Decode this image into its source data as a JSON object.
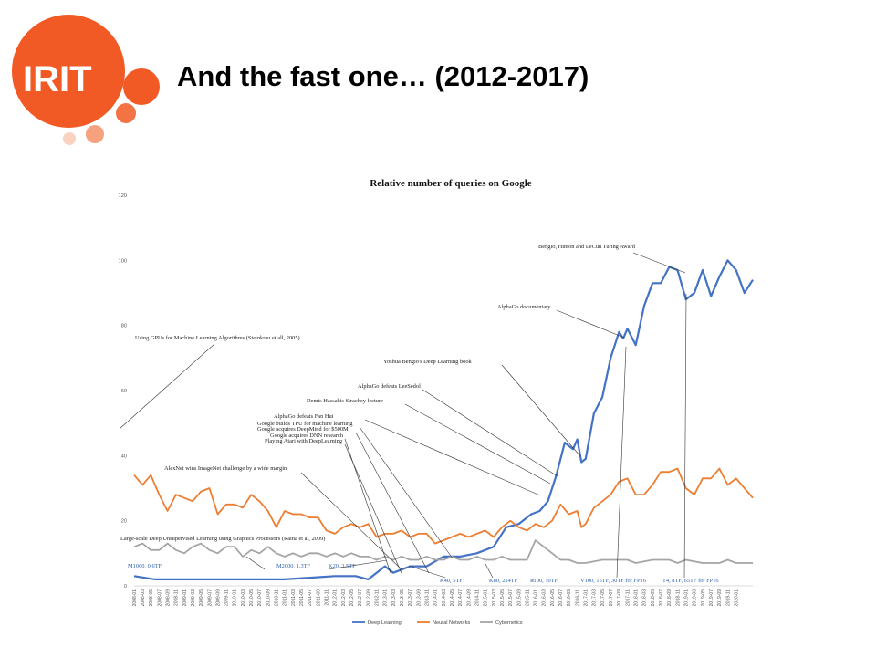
{
  "slide": {
    "title": "And the fast one… (2012-2017)",
    "logo_text": "IRIT",
    "logo_color": "#f15a24"
  },
  "chart_data": {
    "type": "line",
    "title": "Relative number of queries on Google",
    "ylim": [
      0,
      120
    ],
    "yticks": [
      0,
      20,
      40,
      60,
      80,
      100,
      120
    ],
    "grid": false,
    "legend_position": "bottom",
    "x_start": "2008-01",
    "x_end": "2020-01",
    "x_tick_step_months": 2,
    "series": [
      {
        "name": "Deep Learning",
        "color": "#4472c4",
        "points": [
          [
            "2008-01",
            3
          ],
          [
            "2008-06",
            2
          ],
          [
            "2009-01",
            2
          ],
          [
            "2010-01",
            2
          ],
          [
            "2011-01",
            2
          ],
          [
            "2011-07",
            2.5
          ],
          [
            "2012-01",
            3
          ],
          [
            "2012-06",
            3
          ],
          [
            "2012-09",
            2
          ],
          [
            "2013-01",
            6
          ],
          [
            "2013-03",
            4
          ],
          [
            "2013-07",
            6
          ],
          [
            "2013-11",
            6
          ],
          [
            "2014-03",
            9
          ],
          [
            "2014-07",
            9
          ],
          [
            "2014-11",
            10
          ],
          [
            "2015-03",
            12
          ],
          [
            "2015-06",
            18
          ],
          [
            "2015-09",
            19
          ],
          [
            "2015-12",
            22
          ],
          [
            "2016-02",
            23
          ],
          [
            "2016-04",
            26
          ],
          [
            "2016-06",
            34
          ],
          [
            "2016-08",
            44
          ],
          [
            "2016-10",
            42
          ],
          [
            "2016-11",
            45
          ],
          [
            "2016-12",
            38
          ],
          [
            "2017-01",
            39
          ],
          [
            "2017-03",
            53
          ],
          [
            "2017-05",
            58
          ],
          [
            "2017-07",
            70
          ],
          [
            "2017-09",
            78
          ],
          [
            "2017-10",
            76
          ],
          [
            "2017-11",
            79
          ],
          [
            "2018-01",
            74
          ],
          [
            "2018-03",
            86
          ],
          [
            "2018-05",
            93
          ],
          [
            "2018-07",
            93
          ],
          [
            "2018-09",
            98
          ],
          [
            "2018-11",
            97
          ],
          [
            "2019-01",
            88
          ],
          [
            "2019-03",
            90
          ],
          [
            "2019-05",
            97
          ],
          [
            "2019-07",
            89
          ],
          [
            "2019-09",
            95
          ],
          [
            "2019-11",
            100
          ],
          [
            "2020-01",
            97
          ],
          [
            "2020-03",
            90
          ],
          [
            "2020-05",
            94
          ]
        ]
      },
      {
        "name": "Neural Networks",
        "color": "#ed7d31",
        "points": [
          [
            "2008-01",
            34
          ],
          [
            "2008-03",
            31
          ],
          [
            "2008-05",
            34
          ],
          [
            "2008-07",
            28
          ],
          [
            "2008-09",
            23
          ],
          [
            "2008-11",
            28
          ],
          [
            "2009-01",
            27
          ],
          [
            "2009-03",
            26
          ],
          [
            "2009-05",
            29
          ],
          [
            "2009-07",
            30
          ],
          [
            "2009-09",
            22
          ],
          [
            "2009-11",
            25
          ],
          [
            "2010-01",
            25
          ],
          [
            "2010-03",
            24
          ],
          [
            "2010-05",
            28
          ],
          [
            "2010-07",
            26
          ],
          [
            "2010-09",
            23
          ],
          [
            "2010-11",
            18
          ],
          [
            "2011-01",
            23
          ],
          [
            "2011-03",
            22
          ],
          [
            "2011-05",
            22
          ],
          [
            "2011-07",
            21
          ],
          [
            "2011-09",
            21
          ],
          [
            "2011-11",
            17
          ],
          [
            "2012-01",
            16
          ],
          [
            "2012-03",
            18
          ],
          [
            "2012-05",
            19
          ],
          [
            "2012-07",
            18
          ],
          [
            "2012-09",
            19
          ],
          [
            "2012-11",
            15
          ],
          [
            "2013-01",
            16
          ],
          [
            "2013-03",
            16
          ],
          [
            "2013-05",
            17
          ],
          [
            "2013-07",
            15
          ],
          [
            "2013-09",
            16
          ],
          [
            "2013-11",
            16
          ],
          [
            "2014-01",
            13
          ],
          [
            "2014-03",
            14
          ],
          [
            "2014-05",
            15
          ],
          [
            "2014-07",
            16
          ],
          [
            "2014-09",
            15
          ],
          [
            "2014-11",
            16
          ],
          [
            "2015-01",
            17
          ],
          [
            "2015-03",
            15
          ],
          [
            "2015-05",
            18
          ],
          [
            "2015-07",
            20
          ],
          [
            "2015-09",
            18
          ],
          [
            "2015-11",
            17
          ],
          [
            "2016-01",
            19
          ],
          [
            "2016-03",
            18
          ],
          [
            "2016-05",
            20
          ],
          [
            "2016-07",
            25
          ],
          [
            "2016-09",
            22
          ],
          [
            "2016-11",
            23
          ],
          [
            "2016-12",
            18
          ],
          [
            "2017-01",
            19
          ],
          [
            "2017-03",
            24
          ],
          [
            "2017-05",
            26
          ],
          [
            "2017-07",
            28
          ],
          [
            "2017-09",
            32
          ],
          [
            "2017-11",
            33
          ],
          [
            "2018-01",
            28
          ],
          [
            "2018-03",
            28
          ],
          [
            "2018-05",
            31
          ],
          [
            "2018-07",
            35
          ],
          [
            "2018-09",
            35
          ],
          [
            "2018-11",
            36
          ],
          [
            "2019-01",
            30
          ],
          [
            "2019-03",
            28
          ],
          [
            "2019-05",
            33
          ],
          [
            "2019-07",
            33
          ],
          [
            "2019-09",
            36
          ],
          [
            "2019-11",
            31
          ],
          [
            "2020-01",
            33
          ],
          [
            "2020-03",
            30
          ],
          [
            "2020-05",
            27
          ]
        ]
      },
      {
        "name": "Cybernetics",
        "color": "#a5a5a5",
        "points": [
          [
            "2008-01",
            12
          ],
          [
            "2008-03",
            13
          ],
          [
            "2008-05",
            11
          ],
          [
            "2008-07",
            11
          ],
          [
            "2008-09",
            13
          ],
          [
            "2008-11",
            11
          ],
          [
            "2009-01",
            10
          ],
          [
            "2009-03",
            12
          ],
          [
            "2009-05",
            13
          ],
          [
            "2009-07",
            11
          ],
          [
            "2009-09",
            10
          ],
          [
            "2009-11",
            12
          ],
          [
            "2010-01",
            12
          ],
          [
            "2010-03",
            9
          ],
          [
            "2010-05",
            11
          ],
          [
            "2010-07",
            10
          ],
          [
            "2010-09",
            12
          ],
          [
            "2010-11",
            10
          ],
          [
            "2011-01",
            9
          ],
          [
            "2011-03",
            10
          ],
          [
            "2011-05",
            9
          ],
          [
            "2011-07",
            10
          ],
          [
            "2011-09",
            10
          ],
          [
            "2011-11",
            9
          ],
          [
            "2012-01",
            10
          ],
          [
            "2012-03",
            9
          ],
          [
            "2012-05",
            10
          ],
          [
            "2012-07",
            9
          ],
          [
            "2012-09",
            9
          ],
          [
            "2012-11",
            8
          ],
          [
            "2013-01",
            9
          ],
          [
            "2013-03",
            8
          ],
          [
            "2013-05",
            9
          ],
          [
            "2013-07",
            8
          ],
          [
            "2013-09",
            8
          ],
          [
            "2013-11",
            9
          ],
          [
            "2014-01",
            8
          ],
          [
            "2014-03",
            8
          ],
          [
            "2014-05",
            9
          ],
          [
            "2014-07",
            8
          ],
          [
            "2014-09",
            8
          ],
          [
            "2014-11",
            9
          ],
          [
            "2015-01",
            8
          ],
          [
            "2015-03",
            8
          ],
          [
            "2015-05",
            9
          ],
          [
            "2015-07",
            8
          ],
          [
            "2015-09",
            8
          ],
          [
            "2015-11",
            8
          ],
          [
            "2016-01",
            14
          ],
          [
            "2016-03",
            12
          ],
          [
            "2016-05",
            10
          ],
          [
            "2016-07",
            8
          ],
          [
            "2016-09",
            8
          ],
          [
            "2016-11",
            7
          ],
          [
            "2017-01",
            7
          ],
          [
            "2017-05",
            8
          ],
          [
            "2017-09",
            8
          ],
          [
            "2017-11",
            8
          ],
          [
            "2018-01",
            7
          ],
          [
            "2018-05",
            8
          ],
          [
            "2018-09",
            8
          ],
          [
            "2018-11",
            7
          ],
          [
            "2019-01",
            8
          ],
          [
            "2019-05",
            7
          ],
          [
            "2019-09",
            7
          ],
          [
            "2019-11",
            8
          ],
          [
            "2020-01",
            7
          ],
          [
            "2020-05",
            7
          ]
        ]
      }
    ],
    "annotations": [
      {
        "text": "Using GPUs for Machine Learning Algorithms (Steinkrau et all, 2005)",
        "x": "2008-01",
        "y": 76,
        "color": "dark"
      },
      {
        "text": "AlexNet wins ImageNet challenge by a wide margin",
        "x": "2013-01",
        "y": 36,
        "color": "dark"
      },
      {
        "text": "Large-scale Deep Unsupervised Learning using Graphics Processors (Raina et al, 2009)",
        "x": "2009-07",
        "y": 12,
        "color": "dark"
      },
      {
        "text": "Playing Atari with DeepLearning",
        "x": "2013-01",
        "y": 40,
        "color": "dark"
      },
      {
        "text": "Google acquires DNN research",
        "x": "2013-03",
        "y": 42,
        "color": "dark"
      },
      {
        "text": "Google acquires DeepMind for $500M",
        "x": "2014-01",
        "y": 43,
        "color": "dark"
      },
      {
        "text": "Google builds TPU for machine learning",
        "x": "2014-03",
        "y": 44,
        "color": "dark"
      },
      {
        "text": "AlphaGo defeats Fan Hui",
        "x": "2016-01",
        "y": 46,
        "color": "dark"
      },
      {
        "text": "Demis Hassabis Strachey lecture",
        "x": "2016-04",
        "y": 50,
        "color": "dark"
      },
      {
        "text": "AlphaGo defeats LeeSedol",
        "x": "2016-06",
        "y": 54,
        "color": "dark"
      },
      {
        "text": "Yoshua Bengio's Deep Learning book",
        "x": "2016-08",
        "y": 66,
        "color": "dark"
      },
      {
        "text": "AlphaGo documentary",
        "x": "2017-10",
        "y": 77,
        "color": "dark"
      },
      {
        "text": "Bengio, Hinton and LeCun Turing Award",
        "x": "2019-03",
        "y": 100,
        "color": "dark"
      },
      {
        "text": "M1060, 0.6TF",
        "x": "2008-01",
        "y": 1,
        "color": "blue"
      },
      {
        "text": "M2000, 1.3TF",
        "x": "2011-03",
        "y": 1,
        "color": "blue"
      },
      {
        "text": "K20, 3.5TF",
        "x": "2012-03",
        "y": 1,
        "color": "blue"
      },
      {
        "text": "K40, 5TF",
        "x": "2014-01",
        "y": 1,
        "color": "blue"
      },
      {
        "text": "K80, 2x4TF",
        "x": "2015-03",
        "y": 1,
        "color": "blue"
      },
      {
        "text": "P100, 10TF",
        "x": "2016-05",
        "y": 1,
        "color": "blue"
      },
      {
        "text": "V100, 15TF, 30TF for FP16",
        "x": "2017-11",
        "y": 1,
        "color": "blue"
      },
      {
        "text": "T4, 8TF, 65TF for FP16",
        "x": "2019-07",
        "y": 1,
        "color": "blue"
      }
    ]
  }
}
